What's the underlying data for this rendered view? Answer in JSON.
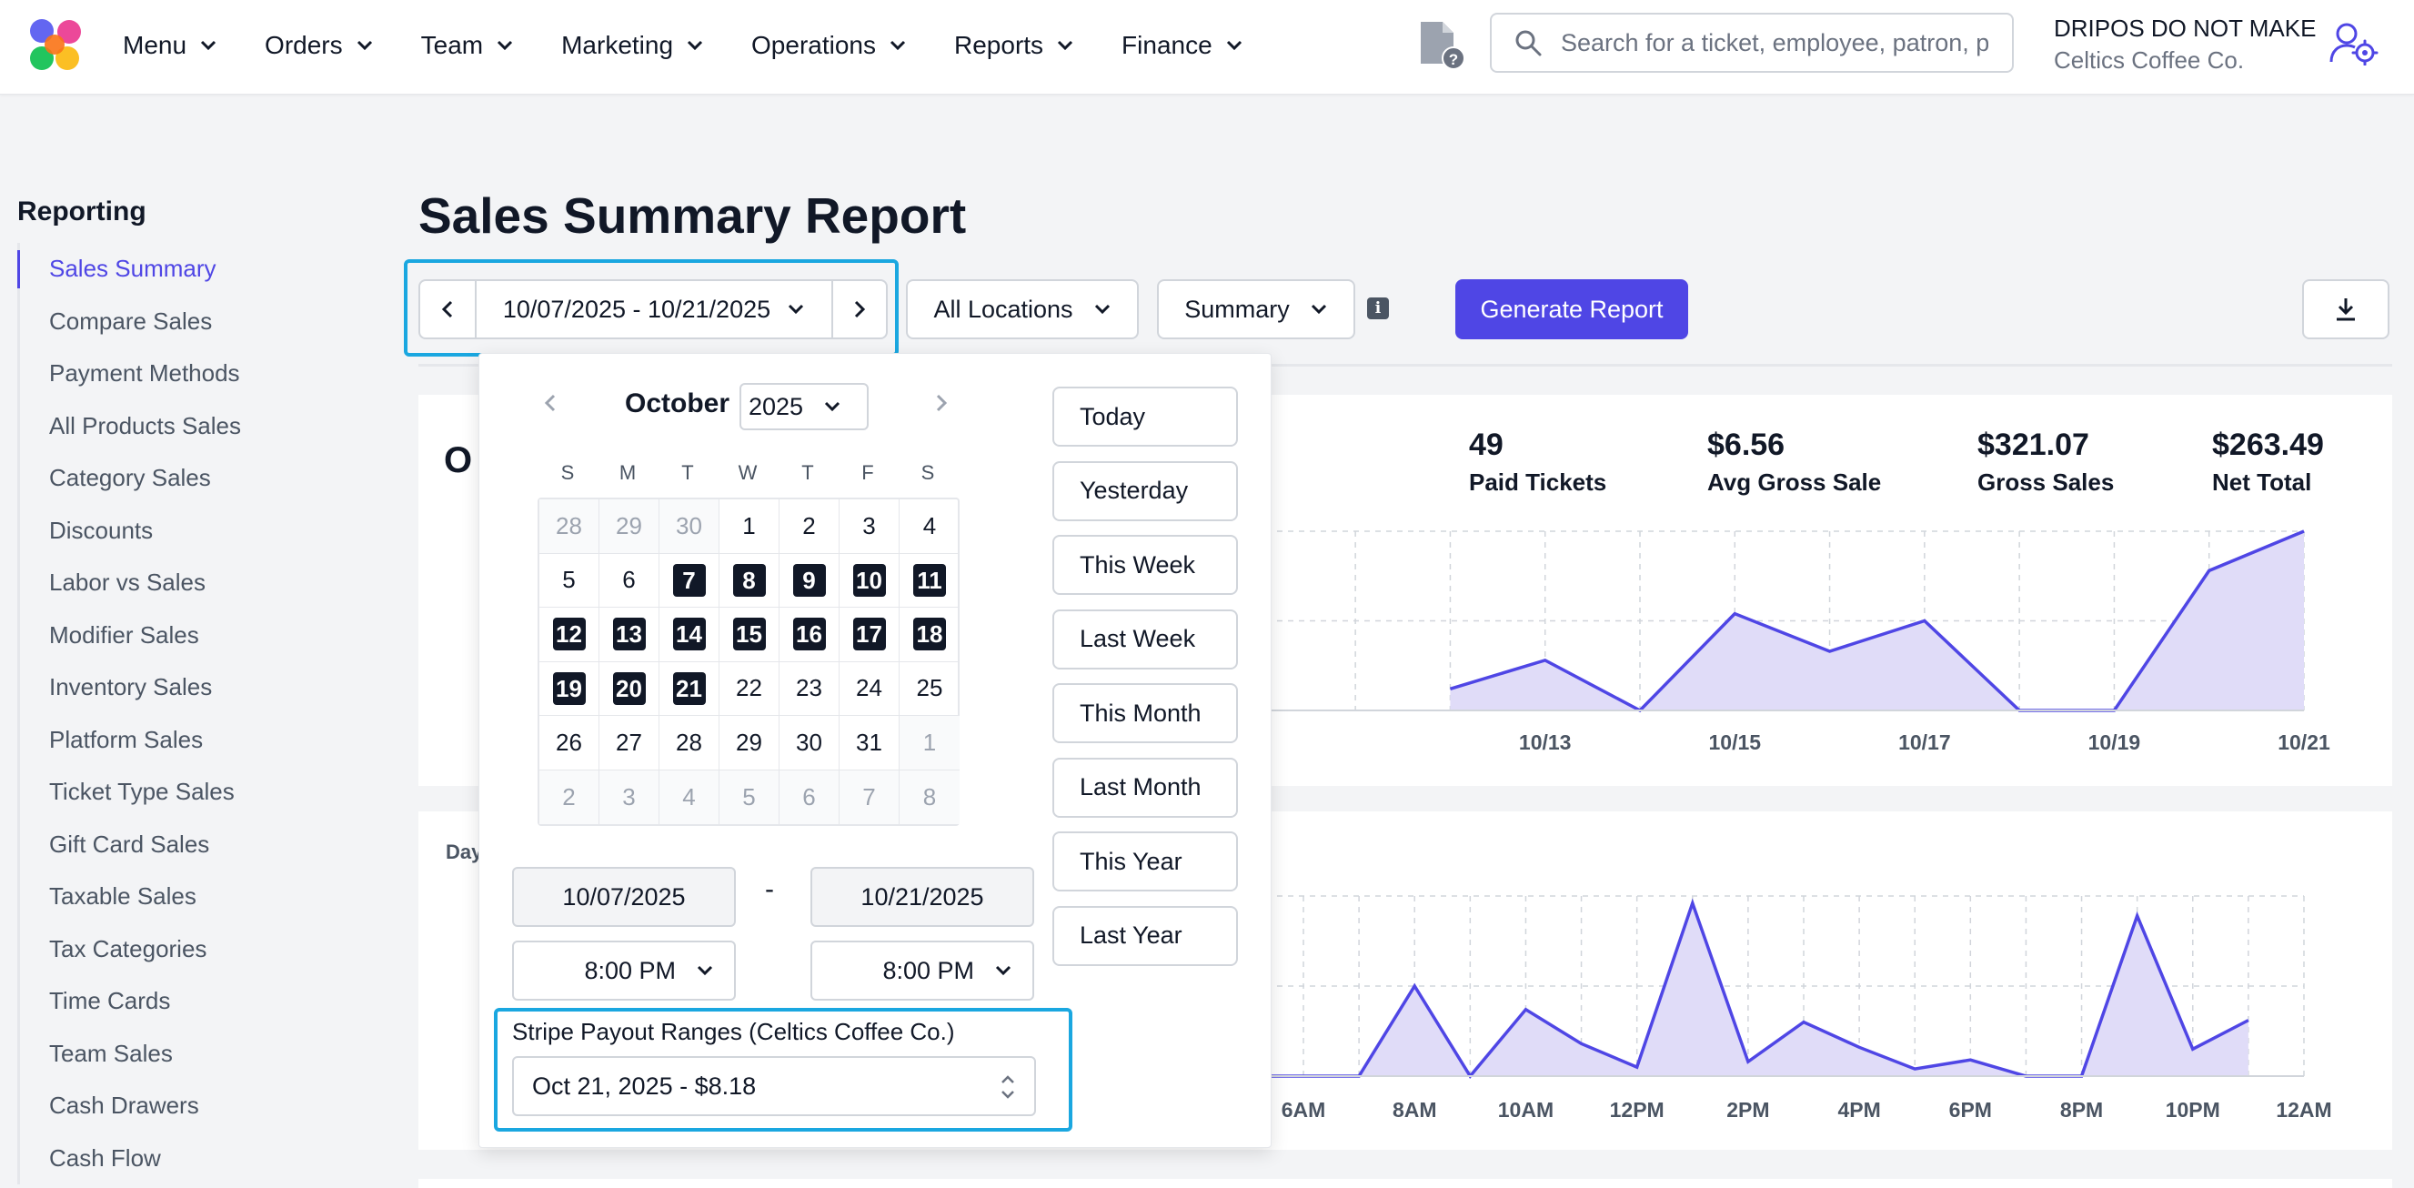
{
  "header": {
    "nav": [
      "Menu",
      "Orders",
      "Team",
      "Marketing",
      "Operations",
      "Reports",
      "Finance"
    ],
    "search_placeholder": "Search for a ticket, employee, patron, p",
    "account_name": "DRIPOS DO NOT MAKE",
    "account_company": "Celtics Coffee Co."
  },
  "sidebar": {
    "title": "Reporting",
    "items": [
      "Sales Summary",
      "Compare Sales",
      "Payment Methods",
      "All Products Sales",
      "Category Sales",
      "Discounts",
      "Labor vs Sales",
      "Modifier Sales",
      "Inventory Sales",
      "Platform Sales",
      "Ticket Type Sales",
      "Gift Card Sales",
      "Taxable Sales",
      "Tax Categories",
      "Time Cards",
      "Team Sales",
      "Cash Drawers",
      "Cash Flow"
    ],
    "active_index": 0
  },
  "page": {
    "title": "Sales Summary Report",
    "date_range": "10/07/2025 - 10/21/2025",
    "locations": "All Locations",
    "view": "Summary",
    "info_glyph": "i",
    "generate_label": "Generate Report"
  },
  "summary_card": {
    "title_partial": "O",
    "stats": [
      {
        "value": "49",
        "label": "Paid Tickets"
      },
      {
        "value": "$6.56",
        "label": "Avg Gross Sale"
      },
      {
        "value": "$321.07",
        "label": "Gross Sales"
      },
      {
        "value": "$263.49",
        "label": "Net Total"
      }
    ]
  },
  "daily_chart_card": {
    "title_partial": "Day"
  },
  "calendar": {
    "month": "October",
    "year": "2025",
    "dow": [
      "S",
      "M",
      "T",
      "W",
      "T",
      "F",
      "S"
    ],
    "weeks": [
      [
        "28",
        "29",
        "30",
        "1",
        "2",
        "3",
        "4"
      ],
      [
        "5",
        "6",
        "7",
        "8",
        "9",
        "10",
        "11"
      ],
      [
        "12",
        "13",
        "14",
        "15",
        "16",
        "17",
        "18"
      ],
      [
        "19",
        "20",
        "21",
        "22",
        "23",
        "24",
        "25"
      ],
      [
        "26",
        "27",
        "28",
        "29",
        "30",
        "31",
        "1"
      ],
      [
        "2",
        "3",
        "4",
        "5",
        "6",
        "7",
        "8"
      ]
    ],
    "selected_range": [
      "7",
      "21"
    ],
    "start_date": "10/07/2025",
    "end_date": "10/21/2025",
    "range_dash": "-",
    "start_time": "8:00 PM",
    "end_time": "8:00 PM",
    "payout_label": "Stripe Payout Ranges (Celtics Coffee Co.)",
    "payout_value": "Oct 21, 2025 - $8.18",
    "quick_ranges": [
      "Today",
      "Yesterday",
      "This Week",
      "Last Week",
      "This Month",
      "Last Month",
      "This Year",
      "Last Year"
    ]
  },
  "chart_data": [
    {
      "type": "area",
      "x": [
        "10/07",
        "10/08",
        "10/09",
        "10/10",
        "10/11",
        "10/12",
        "10/13",
        "10/14",
        "10/15",
        "10/16",
        "10/17",
        "10/18",
        "10/19",
        "10/20",
        "10/21"
      ],
      "x_tick_labels_visible": [
        "10/13",
        "10/15",
        "10/17",
        "10/19",
        "10/21"
      ],
      "values_normalized": [
        null,
        null,
        null,
        null,
        null,
        0.12,
        0.28,
        0.0,
        0.54,
        0.33,
        0.5,
        0.0,
        0.0,
        0.78,
        1.0
      ],
      "grid": true,
      "color": "#4f46e5",
      "fill": "#e0dcf8"
    },
    {
      "type": "area",
      "x": [
        "12AM",
        "1AM",
        "2AM",
        "3AM",
        "4AM",
        "5AM",
        "6AM",
        "7AM",
        "8AM",
        "9AM",
        "10AM",
        "11AM",
        "12PM",
        "1PM",
        "2PM",
        "3PM",
        "4PM",
        "5PM",
        "6PM",
        "7PM",
        "8PM",
        "9PM",
        "10PM",
        "11PM",
        "12AM"
      ],
      "x_tick_labels_visible": [
        "4AM",
        "6AM",
        "8AM",
        "10AM",
        "12PM",
        "2PM",
        "4PM",
        "6PM",
        "8PM",
        "10PM",
        "12AM"
      ],
      "values_normalized": [
        0,
        0,
        0,
        0,
        0,
        0,
        0,
        0,
        0.5,
        0,
        0.37,
        0.18,
        0.05,
        0.96,
        0.08,
        0.3,
        0.16,
        0.04,
        0.09,
        0,
        0,
        0.89,
        0.15,
        0.31,
        null
      ],
      "grid": true,
      "color": "#4f46e5",
      "fill": "#e0dcf8"
    }
  ]
}
